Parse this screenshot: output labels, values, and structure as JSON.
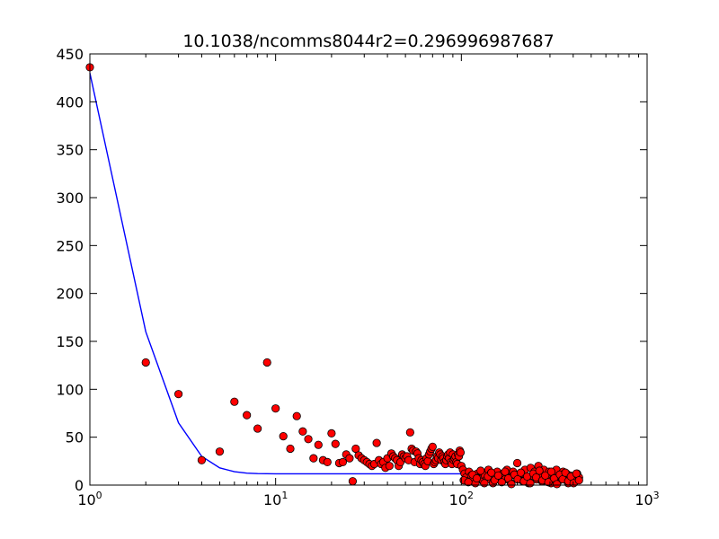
{
  "chart_data": {
    "type": "scatter",
    "title": "10.1038/ncomms8044r2=0.296996987687",
    "xlabel": "",
    "ylabel": "",
    "xscale": "log",
    "xlim": [
      1,
      1000
    ],
    "ylim": [
      0,
      450
    ],
    "x_ticks": [
      1,
      10,
      100,
      1000
    ],
    "x_tick_labels": [
      {
        "base": "10",
        "exp": "0"
      },
      {
        "base": "10",
        "exp": "1"
      },
      {
        "base": "10",
        "exp": "2"
      },
      {
        "base": "10",
        "exp": "3"
      }
    ],
    "y_ticks": [
      0,
      50,
      100,
      150,
      200,
      250,
      300,
      350,
      400,
      450
    ],
    "y_tick_labels": [
      "0",
      "50",
      "100",
      "150",
      "200",
      "250",
      "300",
      "350",
      "400",
      "450"
    ],
    "grid": false,
    "colors": {
      "points": "#ff0000",
      "point_edge": "#000000",
      "fit_line": "#0000ff",
      "axes": "#000000"
    },
    "series": [
      {
        "kind": "points",
        "x": [
          1,
          2,
          3,
          4,
          5,
          6,
          7,
          8,
          9,
          10,
          11,
          12,
          13,
          14,
          15,
          16,
          17,
          18,
          19,
          20,
          21,
          22,
          23,
          24,
          25,
          26,
          27,
          28,
          29,
          30,
          31,
          32,
          33,
          34,
          35,
          36,
          37,
          38,
          39,
          40,
          41,
          42,
          43,
          44,
          45,
          46,
          47,
          48,
          49,
          50,
          51,
          52,
          53,
          54,
          55,
          56,
          57,
          58,
          59,
          60,
          61,
          62,
          63,
          64,
          65,
          66,
          67,
          68,
          69,
          70,
          71,
          72,
          73,
          74,
          75,
          76,
          77,
          78,
          79,
          80,
          81,
          82,
          83,
          84,
          85,
          86,
          87,
          88,
          89,
          90,
          91,
          92,
          93,
          94,
          95,
          96,
          97,
          98,
          99,
          100,
          102,
          104,
          106,
          108,
          110,
          113,
          116,
          119,
          122,
          125,
          128,
          131,
          134,
          137,
          140,
          144,
          148,
          152,
          156,
          160,
          164,
          168,
          172,
          176,
          180,
          185,
          190,
          195,
          200,
          205,
          210,
          215,
          220,
          225,
          230,
          236,
          242,
          248,
          254,
          260,
          266,
          272,
          278,
          284,
          290,
          297,
          304,
          311,
          318,
          325,
          332,
          339,
          346,
          353,
          360,
          368,
          376,
          384,
          392,
          400,
          410,
          420,
          430,
          103,
          109,
          115,
          121,
          127,
          133,
          139,
          145,
          151,
          158,
          165,
          172,
          179,
          186,
          193,
          201,
          209,
          217,
          226,
          235,
          244,
          253,
          263,
          273,
          283,
          294,
          305,
          316,
          327,
          339,
          351,
          363,
          376,
          389,
          402,
          416,
          430
        ],
        "y": [
          436,
          128,
          95,
          26,
          35,
          87,
          73,
          59,
          128,
          80,
          51,
          38,
          72,
          56,
          48,
          28,
          42,
          26,
          24,
          54,
          43,
          23,
          24,
          32,
          28,
          4,
          38,
          31,
          28,
          26,
          24,
          22,
          20,
          22,
          44,
          26,
          22,
          24,
          18,
          28,
          20,
          33,
          30,
          28,
          26,
          20,
          24,
          32,
          30,
          28,
          30,
          26,
          55,
          38,
          36,
          24,
          35,
          33,
          28,
          22,
          26,
          24,
          22,
          20,
          28,
          25,
          32,
          35,
          38,
          40,
          22,
          24,
          26,
          30,
          28,
          34,
          32,
          26,
          30,
          28,
          24,
          22,
          26,
          30,
          32,
          28,
          34,
          24,
          22,
          32,
          26,
          28,
          30,
          24,
          22,
          32,
          30,
          36,
          34,
          20,
          16,
          12,
          8,
          4,
          14,
          10,
          6,
          2,
          12,
          8,
          14,
          4,
          10,
          6,
          16,
          12,
          2,
          8,
          14,
          10,
          4,
          12,
          6,
          16,
          8,
          2,
          14,
          10,
          23,
          6,
          12,
          4,
          16,
          8,
          2,
          18,
          10,
          14,
          6,
          20,
          12,
          4,
          16,
          8,
          10,
          14,
          2,
          6,
          12,
          16,
          4,
          10,
          8,
          14,
          6,
          12,
          2,
          10,
          8,
          6,
          4,
          12,
          8,
          5,
          3,
          11,
          7,
          15,
          2,
          9,
          13,
          5,
          10,
          3,
          14,
          7,
          1,
          11,
          6,
          13,
          4,
          9,
          2,
          12,
          8,
          15,
          5,
          10,
          3,
          14,
          7,
          1,
          11,
          6,
          13,
          4,
          9,
          2,
          12,
          5
        ]
      },
      {
        "kind": "line",
        "x": [
          1,
          2,
          3,
          4,
          5,
          6,
          7,
          8,
          10,
          15,
          20,
          30,
          50,
          100,
          200,
          300,
          430
        ],
        "y": [
          430,
          160,
          65,
          30,
          18,
          14,
          12.5,
          12,
          11.8,
          11.8,
          11.8,
          11.8,
          11.8,
          11.8,
          11.8,
          11.8,
          11.8
        ]
      }
    ]
  }
}
